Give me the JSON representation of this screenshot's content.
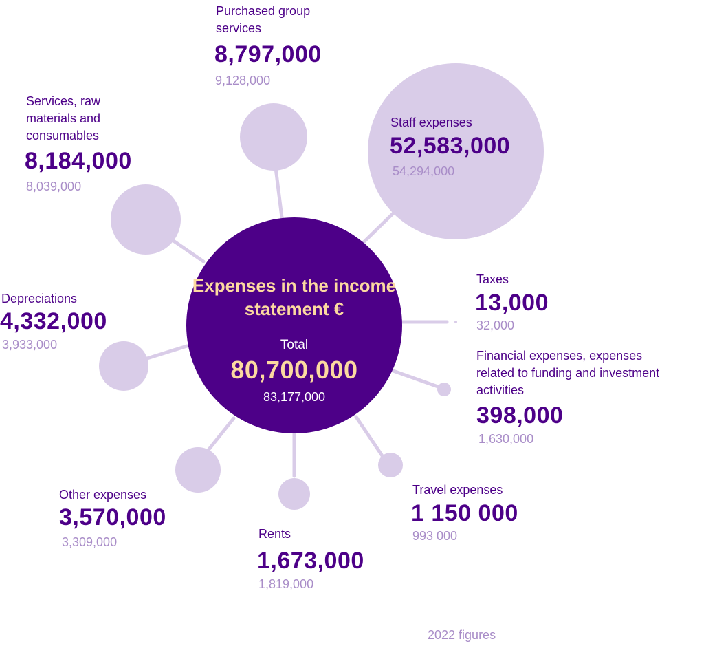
{
  "accent_color": "#4d0088",
  "satellite_color": "#d9cce8",
  "muted_color": "#a98dc8",
  "highlight_color": "#fcd9a0",
  "hub": {
    "title": "Expenses in the income statement €",
    "total_label": "Total",
    "total_value": "80,700,000",
    "total_previous": "83,177,000"
  },
  "categories": {
    "purchased_group_services": {
      "label": "Purchased group services",
      "value": "8,797,000",
      "previous": "9,128,000"
    },
    "services_raw_materials": {
      "label": "Services, raw materials and consumables",
      "value": "8,184,000",
      "previous": "8,039,000"
    },
    "staff_expenses": {
      "label": "Staff expenses",
      "value": "52,583,000",
      "previous": "54,294,000"
    },
    "depreciations": {
      "label": "Depreciations",
      "value": "4,332,000",
      "previous": "3,933,000"
    },
    "taxes": {
      "label": "Taxes",
      "value": "13,000",
      "previous": "32,000"
    },
    "financial_expenses": {
      "label": "Financial expenses, expenses related to funding and investment activities",
      "value": "398,000",
      "previous": "1,630,000"
    },
    "other_expenses": {
      "label": "Other expenses",
      "value": "3,570,000",
      "previous": "3,309,000"
    },
    "rents": {
      "label": "Rents",
      "value": "1,673,000",
      "previous": "1,819,000"
    },
    "travel_expenses": {
      "label": "Travel expenses",
      "value": "1 150 000",
      "previous": "993 000"
    }
  },
  "footnote": "2022 figures"
}
